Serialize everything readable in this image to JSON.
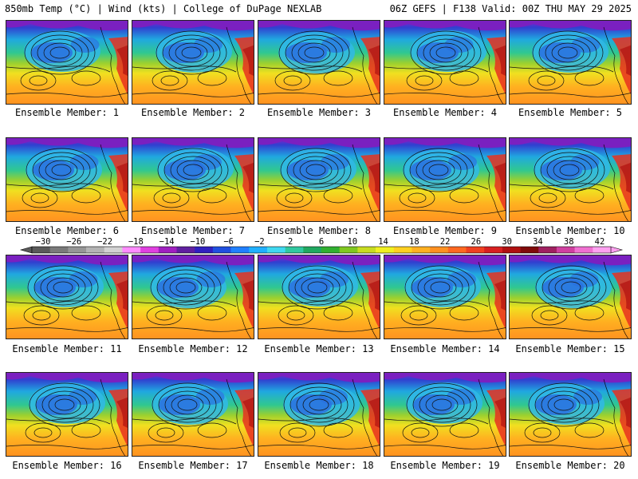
{
  "header": {
    "left": "850mb Temp (°C) | Wind (kts) | College of DuPage NEXLAB",
    "right": "06Z GEFS | F138 Valid: 00Z THU MAY 29 2025"
  },
  "panels": [
    {
      "label": "Ensemble Member: 1"
    },
    {
      "label": "Ensemble Member: 2"
    },
    {
      "label": "Ensemble Member: 3"
    },
    {
      "label": "Ensemble Member: 4"
    },
    {
      "label": "Ensemble Member: 5"
    },
    {
      "label": "Ensemble Member: 6"
    },
    {
      "label": "Ensemble Member: 7"
    },
    {
      "label": "Ensemble Member: 8"
    },
    {
      "label": "Ensemble Member: 9"
    },
    {
      "label": "Ensemble Member: 10"
    },
    {
      "label": "Ensemble Member: 11"
    },
    {
      "label": "Ensemble Member: 12"
    },
    {
      "label": "Ensemble Member: 13"
    },
    {
      "label": "Ensemble Member: 14"
    },
    {
      "label": "Ensemble Member: 15"
    },
    {
      "label": "Ensemble Member: 16"
    },
    {
      "label": "Ensemble Member: 17"
    },
    {
      "label": "Ensemble Member: 18"
    },
    {
      "label": "Ensemble Member: 19"
    },
    {
      "label": "Ensemble Member: 20"
    }
  ],
  "colorbar": {
    "ticks": [
      "−30",
      "−26",
      "−22",
      "−18",
      "−14",
      "−10",
      "−6",
      "−2",
      "2",
      "6",
      "10",
      "14",
      "18",
      "22",
      "26",
      "30",
      "34",
      "38",
      "42"
    ],
    "colors": [
      "#5a5a5a",
      "#7a7a7a",
      "#969696",
      "#b4b4b4",
      "#d2d2d2",
      "#ff8cff",
      "#e040e0",
      "#a020c0",
      "#6020a0",
      "#3020c0",
      "#2050e0",
      "#2080ff",
      "#20b0ff",
      "#40d8f0",
      "#30c8a0",
      "#20a860",
      "#30b030",
      "#80c820",
      "#c8dc20",
      "#f0f020",
      "#ffd020",
      "#ffb020",
      "#ff9020",
      "#ff6820",
      "#f04020",
      "#d82020",
      "#b01010",
      "#800a0a",
      "#a02060",
      "#d040a0",
      "#f070d0",
      "#ffa0f0"
    ]
  }
}
